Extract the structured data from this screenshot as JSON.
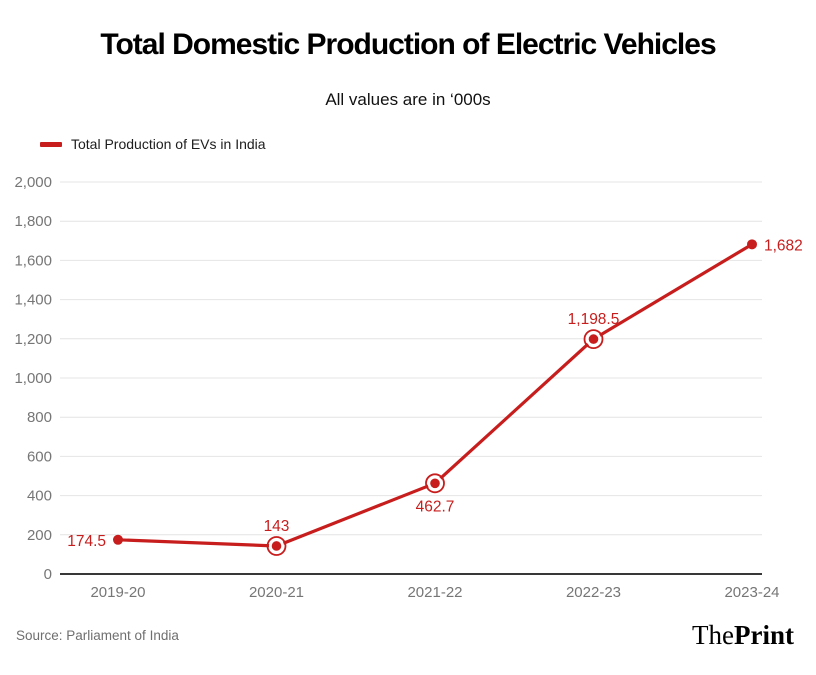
{
  "header": {
    "title": "Total Domestic Production of Electric Vehicles",
    "subtitle": "All values are in ‘000s"
  },
  "chart_data": {
    "type": "line",
    "categories": [
      "2019-20",
      "2020-21",
      "2021-22",
      "2022-23",
      "2023-24"
    ],
    "series": [
      {
        "name": "Total Production of EVs in India",
        "values": [
          174.5,
          143,
          462.7,
          1198.5,
          1682
        ],
        "labels": [
          "174.5",
          "143",
          "462.7",
          "1,198.5",
          "1,682"
        ],
        "color": "#c71e1d"
      }
    ],
    "title": "Total Domestic Production of Electric Vehicles",
    "subtitle": "All values are in ‘000s",
    "xlabel": "",
    "ylabel": "",
    "ylim": [
      0,
      2000
    ],
    "ytick_step": 200,
    "yticks": [
      {
        "value": 0,
        "label": "0"
      },
      {
        "value": 200,
        "label": "200"
      },
      {
        "value": 400,
        "label": "400"
      },
      {
        "value": 600,
        "label": "600"
      },
      {
        "value": 800,
        "label": "800"
      },
      {
        "value": 1000,
        "label": "1,000"
      },
      {
        "value": 1200,
        "label": "1,200"
      },
      {
        "value": 1400,
        "label": "1,400"
      },
      {
        "value": 1600,
        "label": "1,600"
      },
      {
        "value": 1800,
        "label": "1,800"
      },
      {
        "value": 2000,
        "label": "2,000"
      }
    ],
    "grid": true,
    "legend_position": "top-left",
    "label_placements": [
      "left",
      "top",
      "bottom",
      "top",
      "right"
    ],
    "ring_markers": [
      false,
      true,
      true,
      true,
      false
    ],
    "colors": {
      "accent": "#c71e1d",
      "grid": "#e4e4e4",
      "axis": "#383838",
      "tick_text": "#767676",
      "background": "#ffffff"
    }
  },
  "footer": {
    "source": "Source: Parliament of India",
    "logo_the": "The",
    "logo_print": "Print"
  }
}
